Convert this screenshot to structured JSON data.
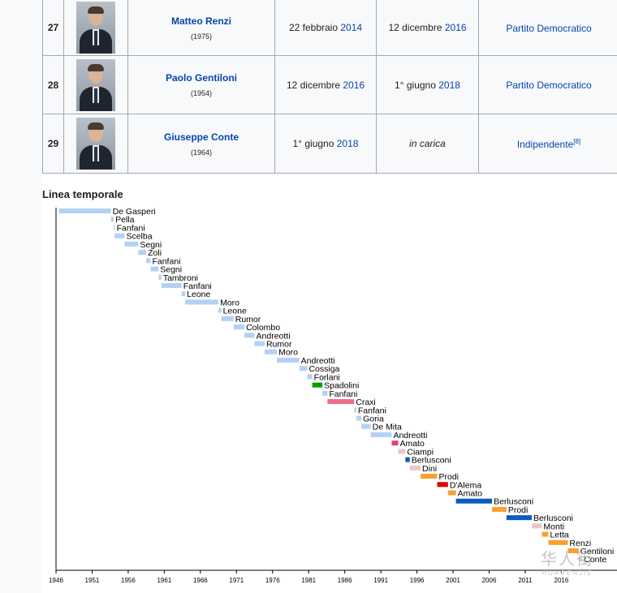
{
  "table": {
    "rows": [
      {
        "num": "27",
        "name": "Matteo Renzi",
        "years": "(1975)",
        "start_prefix": "22 febbraio",
        "start_year": "2014",
        "end_prefix": "12 dicembre",
        "end_year": "2016",
        "end_italic": "",
        "party": "Partito Democratico",
        "party_ref": ""
      },
      {
        "num": "28",
        "name": "Paolo Gentiloni",
        "years": "(1954)",
        "start_prefix": "12 dicembre",
        "start_year": "2016",
        "end_prefix": "1° giugno",
        "end_year": "2018",
        "end_italic": "",
        "party": "Partito Democratico",
        "party_ref": ""
      },
      {
        "num": "29",
        "name": "Giuseppe Conte",
        "years": "(1964)",
        "start_prefix": "1° giugno",
        "start_year": "2018",
        "end_prefix": "",
        "end_year": "",
        "end_italic": "in carica",
        "party": "Indipendente",
        "party_ref": "[8]"
      }
    ]
  },
  "timeline_title": "Linea temporale",
  "watermark": {
    "glyph": "华人街",
    "text": "HUARENJIE"
  },
  "chart_data": {
    "type": "bar",
    "orientation": "horizontal-gantt",
    "title": "Linea temporale",
    "xlim": [
      1946,
      2020
    ],
    "xticks": [
      "1946",
      "1951",
      "1956",
      "1961",
      "1966",
      "1971",
      "1976",
      "1981",
      "1986",
      "1991",
      "1996",
      "2001",
      "2006",
      "2011",
      "2016"
    ],
    "tick_values": [
      1946,
      1951,
      1956,
      1961,
      1966,
      1971,
      1976,
      1981,
      1986,
      1991,
      1996,
      2001,
      2006,
      2011,
      2016
    ],
    "grid": false,
    "bars": [
      {
        "label": "De Gasperi",
        "start": 1946.4,
        "end": 1953.6,
        "color": "#b3d1f5"
      },
      {
        "label": "Pella",
        "start": 1953.6,
        "end": 1954.0,
        "color": "#b3d1f5"
      },
      {
        "label": "Fanfani",
        "start": 1954.0,
        "end": 1954.1,
        "color": "#b3d1f5"
      },
      {
        "label": "Scelba",
        "start": 1954.1,
        "end": 1955.5,
        "color": "#b3d1f5"
      },
      {
        "label": "Segni",
        "start": 1955.5,
        "end": 1957.4,
        "color": "#b3d1f5"
      },
      {
        "label": "Zoli",
        "start": 1957.4,
        "end": 1958.5,
        "color": "#b3d1f5"
      },
      {
        "label": "Fanfani",
        "start": 1958.5,
        "end": 1959.1,
        "color": "#b3d1f5"
      },
      {
        "label": "Segni",
        "start": 1959.1,
        "end": 1960.2,
        "color": "#b3d1f5"
      },
      {
        "label": "Tambroni",
        "start": 1960.2,
        "end": 1960.6,
        "color": "#b3d1f5"
      },
      {
        "label": "Fanfani",
        "start": 1960.6,
        "end": 1963.4,
        "color": "#b3d1f5"
      },
      {
        "label": "Leone",
        "start": 1963.4,
        "end": 1963.9,
        "color": "#b3d1f5"
      },
      {
        "label": "Moro",
        "start": 1963.9,
        "end": 1968.5,
        "color": "#b3d1f5"
      },
      {
        "label": "Leone",
        "start": 1968.5,
        "end": 1968.9,
        "color": "#b3d1f5"
      },
      {
        "label": "Rumor",
        "start": 1968.9,
        "end": 1970.6,
        "color": "#b3d1f5"
      },
      {
        "label": "Colombo",
        "start": 1970.6,
        "end": 1972.1,
        "color": "#b3d1f5"
      },
      {
        "label": "Andreotti",
        "start": 1972.1,
        "end": 1973.5,
        "color": "#b3d1f5"
      },
      {
        "label": "Rumor",
        "start": 1973.5,
        "end": 1974.9,
        "color": "#b3d1f5"
      },
      {
        "label": "Moro",
        "start": 1974.9,
        "end": 1976.6,
        "color": "#b3d1f5"
      },
      {
        "label": "Andreotti",
        "start": 1976.6,
        "end": 1979.7,
        "color": "#b3d1f5"
      },
      {
        "label": "Cossiga",
        "start": 1979.7,
        "end": 1980.8,
        "color": "#b3d1f5"
      },
      {
        "label": "Forlani",
        "start": 1980.8,
        "end": 1981.5,
        "color": "#b3d1f5"
      },
      {
        "label": "Spadolini",
        "start": 1981.5,
        "end": 1982.9,
        "color": "#00a000"
      },
      {
        "label": "Fanfani",
        "start": 1982.9,
        "end": 1983.6,
        "color": "#b3d1f5"
      },
      {
        "label": "Craxi",
        "start": 1983.6,
        "end": 1987.3,
        "color": "#ef6e8c"
      },
      {
        "label": "Fanfani",
        "start": 1987.3,
        "end": 1987.6,
        "color": "#b3d1f5"
      },
      {
        "label": "Goria",
        "start": 1987.6,
        "end": 1988.3,
        "color": "#b3d1f5"
      },
      {
        "label": "De Mita",
        "start": 1988.3,
        "end": 1989.6,
        "color": "#b3d1f5"
      },
      {
        "label": "Andreotti",
        "start": 1989.6,
        "end": 1992.5,
        "color": "#b3d1f5"
      },
      {
        "label": "Amato",
        "start": 1992.5,
        "end": 1993.4,
        "color": "#e8417a"
      },
      {
        "label": "Ciampi",
        "start": 1993.4,
        "end": 1994.4,
        "color": "#e8c9c9"
      },
      {
        "label": "Berlusconi",
        "start": 1994.4,
        "end": 1995.0,
        "color": "#0a5cbe"
      },
      {
        "label": "Dini",
        "start": 1995.0,
        "end": 1996.5,
        "color": "#e8c9c9"
      },
      {
        "label": "Prodi",
        "start": 1996.5,
        "end": 1998.8,
        "color": "#f7a030"
      },
      {
        "label": "D'Alema",
        "start": 1998.8,
        "end": 2000.3,
        "color": "#e00000"
      },
      {
        "label": "Amato",
        "start": 2000.3,
        "end": 2001.4,
        "color": "#f7a030"
      },
      {
        "label": "Berlusconi",
        "start": 2001.4,
        "end": 2006.4,
        "color": "#0a5cbe"
      },
      {
        "label": "Prodi",
        "start": 2006.4,
        "end": 2008.4,
        "color": "#f7a030"
      },
      {
        "label": "Berlusconi",
        "start": 2008.4,
        "end": 2011.9,
        "color": "#0a5cbe"
      },
      {
        "label": "Monti",
        "start": 2011.9,
        "end": 2013.3,
        "color": "#e8c9c9"
      },
      {
        "label": "Letta",
        "start": 2013.3,
        "end": 2014.2,
        "color": "#f7a030"
      },
      {
        "label": "Renzi",
        "start": 2014.2,
        "end": 2016.9,
        "color": "#f7a030"
      },
      {
        "label": "Gentiloni",
        "start": 2016.9,
        "end": 2018.4,
        "color": "#f7a030"
      },
      {
        "label": "Conte",
        "start": 2018.4,
        "end": 2018.9,
        "color": "#e8c9c9"
      }
    ]
  }
}
